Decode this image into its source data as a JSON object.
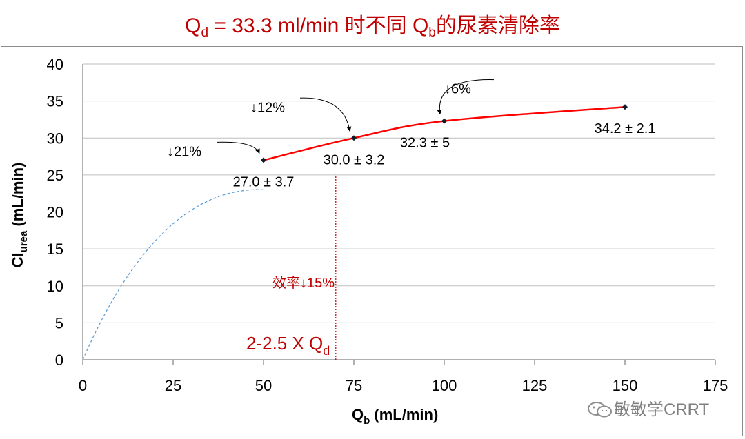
{
  "title": {
    "pre": "Q",
    "pre_sub": "d",
    "mid": " = 33.3 ml/min 时不同 Q",
    "mid_sub": "b",
    "post": "的尿素清除率"
  },
  "chart_data": {
    "type": "line",
    "x": [
      50,
      75,
      100,
      150
    ],
    "series": [
      {
        "values": [
          27.0,
          30.0,
          32.3,
          34.2
        ],
        "color": "#ff0000"
      }
    ],
    "extrapolation": {
      "x": [
        0,
        50
      ],
      "y_end": 23,
      "color": "#5b9bd5",
      "style": "dashed"
    },
    "data_labels": [
      "27.0 ± 3.7",
      "30.0 ± 3.2",
      "32.3 ± 5",
      "34.2 ± 2.1"
    ],
    "decrease_labels": [
      "↓21%",
      "↓12%",
      "↓6%"
    ],
    "xlabel": {
      "main": "Q",
      "sub": "b",
      "rest": " (mL/min)"
    },
    "ylabel": {
      "main": "Cl",
      "sub": "urea",
      "rest": " (mL/min)"
    },
    "xlim": [
      0,
      175
    ],
    "ylim": [
      0,
      40
    ],
    "xticks": [
      0,
      25,
      50,
      75,
      100,
      125,
      150,
      175
    ],
    "yticks": [
      0,
      5,
      10,
      15,
      20,
      25,
      30,
      35,
      40
    ],
    "grid": true,
    "reference_line": {
      "x": 70,
      "from_y": 0,
      "to_y": 25,
      "color": "#c00000",
      "style": "dotted"
    },
    "reference_label": "效率↓15%",
    "reference_x_label": {
      "main": "2-2.5 X Q",
      "sub": "d"
    }
  },
  "watermark": "敏敏学CRRT",
  "colors": {
    "title": "#c00000",
    "grid": "#bfbfbf",
    "marker": "#0d1b2a"
  }
}
